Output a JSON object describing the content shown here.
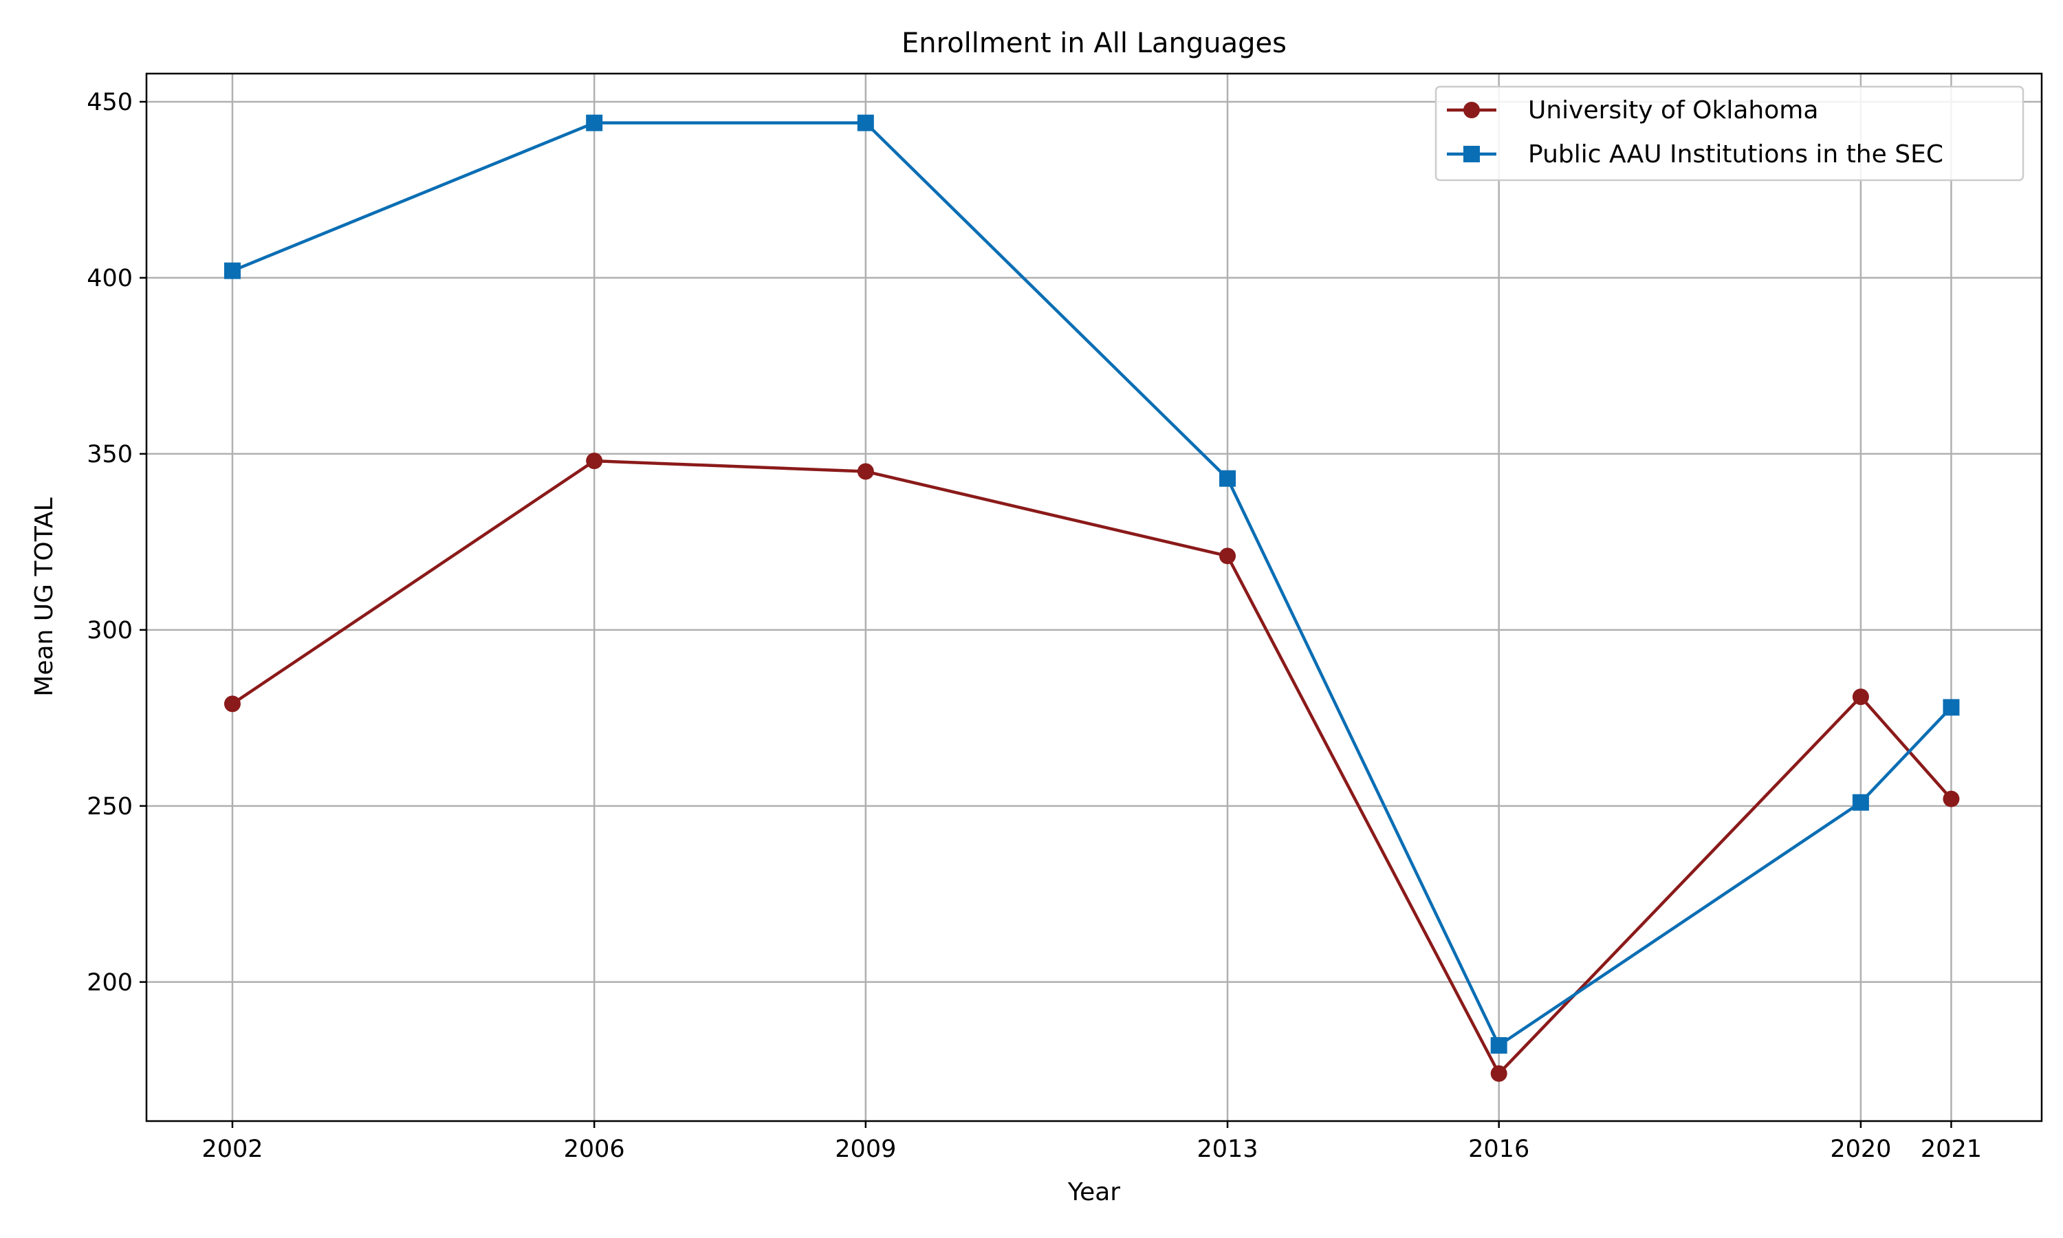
{
  "chart_data": {
    "type": "line",
    "title": "Enrollment in All Languages",
    "xlabel": "Year",
    "ylabel": "Mean UG TOTAL",
    "x": [
      2002,
      2006,
      2009,
      2013,
      2016,
      2020,
      2021
    ],
    "xticks": [
      "2002",
      "2006",
      "2009",
      "2013",
      "2016",
      "2020",
      "2021"
    ],
    "yticks": [
      200,
      250,
      300,
      350,
      400,
      450
    ],
    "ytick_labels": [
      "200",
      "250",
      "300",
      "350",
      "400",
      "450"
    ],
    "xlim": [
      2001.05,
      2022.0
    ],
    "ylim": [
      160.5,
      458
    ],
    "grid": true,
    "legend_position": "top-right",
    "series": [
      {
        "name": "University of Oklahoma",
        "color": "#8b1a1a",
        "marker": "circle",
        "values": [
          279,
          348,
          345,
          321,
          174,
          281,
          252
        ]
      },
      {
        "name": "Public AAU Institutions in the SEC",
        "color": "#0a6eb4",
        "marker": "square",
        "values": [
          402,
          444,
          444,
          343,
          182,
          251,
          278
        ]
      }
    ]
  }
}
